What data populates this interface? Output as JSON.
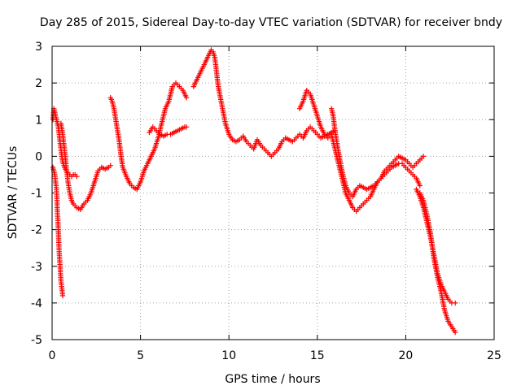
{
  "chart_data": {
    "type": "scatter",
    "title": "Day 285 of 2015, Sidereal Day-to-day VTEC variation (SDTVAR) for receiver bndy",
    "xlabel": "GPS time / hours",
    "ylabel": "SDTVAR / TECUs",
    "xlim": [
      0,
      25
    ],
    "ylim": [
      -5,
      3
    ],
    "x_ticks": [
      0,
      5,
      10,
      15,
      20,
      25
    ],
    "x_tick_labels": [
      "0",
      "5",
      "10",
      "15",
      "20",
      "25"
    ],
    "y_ticks": [
      3,
      2,
      1,
      0,
      -1,
      -2,
      -3,
      -4,
      -5
    ],
    "y_tick_labels": [
      "3",
      "2",
      "1",
      "0",
      "-1",
      "-2",
      "-3",
      "-4",
      "-5"
    ],
    "grid": true,
    "marker": "plus",
    "color": "#ff0000",
    "series": [
      {
        "name": "seg-a",
        "x": [
          0.05,
          0.15,
          0.25,
          0.3,
          0.35,
          0.4,
          0.45,
          0.5,
          0.55,
          0.6
        ],
        "y": [
          -0.3,
          -0.5,
          -0.9,
          -1.5,
          -2.0,
          -2.6,
          -3.0,
          -3.4,
          -3.6,
          -3.8
        ]
      },
      {
        "name": "seg-b",
        "x": [
          0.05,
          0.1,
          0.15,
          0.2,
          0.25,
          0.3,
          0.35,
          0.4,
          0.45,
          0.5,
          0.55,
          0.6,
          0.7,
          0.8,
          0.9,
          1.0,
          1.1,
          1.2,
          1.3,
          1.4
        ],
        "y": [
          1.0,
          1.3,
          1.2,
          1.1,
          1.0,
          0.9,
          0.8,
          0.6,
          0.4,
          0.2,
          0.0,
          -0.15,
          -0.3,
          -0.4,
          -0.45,
          -0.5,
          -0.55,
          -0.5,
          -0.5,
          -0.55
        ]
      },
      {
        "name": "seg-c",
        "x": [
          0.5,
          0.6,
          0.7,
          0.8,
          0.9,
          1.0,
          1.1,
          1.2,
          1.4,
          1.6,
          1.8,
          2.0,
          2.2,
          2.4,
          2.6,
          2.8,
          3.0,
          3.2,
          3.3
        ],
        "y": [
          0.9,
          0.6,
          0.2,
          -0.3,
          -0.7,
          -1.0,
          -1.2,
          -1.3,
          -1.4,
          -1.45,
          -1.3,
          -1.2,
          -1.0,
          -0.7,
          -0.4,
          -0.3,
          -0.35,
          -0.3,
          -0.25
        ]
      },
      {
        "name": "seg-d",
        "x": [
          3.3,
          3.4,
          3.5,
          3.6,
          3.7,
          3.8,
          3.9,
          4.0,
          4.2,
          4.4,
          4.6,
          4.8,
          5.0,
          5.2,
          5.4,
          5.6
        ],
        "y": [
          1.6,
          1.5,
          1.3,
          1.0,
          0.7,
          0.4,
          0.0,
          -0.3,
          -0.55,
          -0.75,
          -0.85,
          -0.9,
          -0.7,
          -0.4,
          -0.2,
          0.0
        ]
      },
      {
        "name": "seg-e",
        "x": [
          5.6,
          5.8,
          6.0,
          6.2,
          6.4,
          6.6,
          6.8,
          7.0,
          7.2,
          7.4,
          7.6
        ],
        "y": [
          0.0,
          0.2,
          0.5,
          0.9,
          1.3,
          1.5,
          1.9,
          2.0,
          1.9,
          1.8,
          1.6
        ]
      },
      {
        "name": "seg-f",
        "x": [
          5.5,
          5.7,
          5.9,
          6.1,
          6.3,
          6.5,
          6.7,
          6.9,
          7.1,
          7.3,
          7.5,
          7.6
        ],
        "y": [
          0.65,
          0.8,
          0.7,
          0.6,
          0.55,
          0.6,
          0.6,
          0.65,
          0.7,
          0.75,
          0.8,
          0.8
        ]
      },
      {
        "name": "seg-g",
        "x": [
          8.0,
          8.3,
          8.6,
          8.8,
          9.0,
          9.1,
          9.2,
          9.3,
          9.4,
          9.6,
          9.8,
          10.0,
          10.2,
          10.4,
          10.6,
          10.8,
          11.0,
          11.2,
          11.4,
          11.6,
          11.8,
          12.0,
          12.2,
          12.4,
          12.6,
          12.8,
          13.0,
          13.2,
          13.4,
          13.6,
          13.8,
          14.0,
          14.2,
          14.4,
          14.6,
          14.8,
          15.0,
          15.2,
          15.4,
          15.6,
          15.8,
          16.0
        ],
        "y": [
          1.9,
          2.2,
          2.5,
          2.7,
          2.9,
          2.85,
          2.7,
          2.3,
          1.9,
          1.4,
          0.9,
          0.6,
          0.45,
          0.4,
          0.45,
          0.55,
          0.4,
          0.3,
          0.2,
          0.45,
          0.3,
          0.2,
          0.1,
          0.0,
          0.1,
          0.2,
          0.4,
          0.5,
          0.45,
          0.4,
          0.5,
          0.6,
          0.5,
          0.7,
          0.8,
          0.7,
          0.6,
          0.5,
          0.55,
          0.6,
          0.65,
          0.7
        ]
      },
      {
        "name": "seg-h",
        "x": [
          14.0,
          14.2,
          14.4,
          14.6,
          14.8,
          15.0,
          15.2,
          15.4,
          15.6,
          15.8,
          16.0,
          16.2,
          16.4,
          16.6,
          16.8,
          17.0,
          17.2,
          17.4,
          17.6,
          17.8,
          18.0,
          18.2,
          18.4,
          18.6,
          18.8,
          19.0,
          19.2,
          19.4,
          19.6,
          19.8,
          20.0,
          20.2,
          20.4,
          20.6,
          20.8,
          21.0
        ],
        "y": [
          1.3,
          1.5,
          1.8,
          1.7,
          1.4,
          1.1,
          0.8,
          0.6,
          0.5,
          0.6,
          0.2,
          -0.2,
          -0.6,
          -1.0,
          -1.2,
          -1.4,
          -1.5,
          -1.4,
          -1.3,
          -1.2,
          -1.1,
          -0.9,
          -0.7,
          -0.6,
          -0.4,
          -0.3,
          -0.2,
          -0.1,
          0.0,
          -0.05,
          -0.1,
          -0.2,
          -0.3,
          -0.2,
          -0.1,
          0.0
        ]
      },
      {
        "name": "seg-i",
        "x": [
          15.8,
          15.9,
          16.0,
          16.2,
          16.4,
          16.6,
          16.8,
          17.0,
          17.2,
          17.4,
          17.6,
          17.8,
          18.0,
          18.2,
          18.4,
          18.6,
          18.8,
          19.0,
          19.2,
          19.4,
          19.6,
          19.8,
          20.0,
          20.2,
          20.4,
          20.6,
          20.8
        ],
        "y": [
          1.3,
          1.1,
          0.7,
          0.1,
          -0.4,
          -0.8,
          -1.0,
          -1.1,
          -0.9,
          -0.8,
          -0.85,
          -0.9,
          -0.85,
          -0.8,
          -0.7,
          -0.6,
          -0.5,
          -0.4,
          -0.3,
          -0.25,
          -0.2,
          -0.2,
          -0.3,
          -0.4,
          -0.5,
          -0.6,
          -0.8
        ]
      },
      {
        "name": "seg-j",
        "x": [
          20.8,
          21.0,
          21.2,
          21.4,
          21.6,
          21.8,
          22.0,
          22.2,
          22.4,
          22.6,
          22.8
        ],
        "y": [
          -1.0,
          -1.2,
          -1.6,
          -2.1,
          -2.8,
          -3.3,
          -3.7,
          -4.2,
          -4.5,
          -4.65,
          -4.8
        ]
      },
      {
        "name": "seg-k",
        "x": [
          20.6,
          20.8,
          21.0,
          21.2,
          21.4,
          21.6,
          21.8,
          22.0,
          22.2,
          22.4,
          22.6,
          22.8
        ],
        "y": [
          -0.9,
          -1.1,
          -1.4,
          -1.8,
          -2.2,
          -2.7,
          -3.2,
          -3.5,
          -3.7,
          -3.9,
          -4.0,
          -4.0
        ]
      }
    ]
  }
}
